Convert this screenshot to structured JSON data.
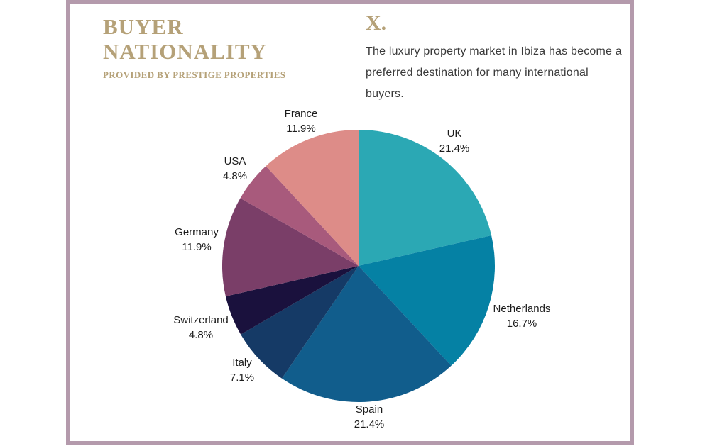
{
  "frame": {
    "border_color": "#B49AAC"
  },
  "header": {
    "title_line1": "BUYER",
    "title_line2": "NATIONALITY",
    "subtitle": "PROVIDED BY PRESTIGE PROPERTIES",
    "accent_color": "#B5A178"
  },
  "intro": {
    "monogram": "X.",
    "description": "The luxury property market in Ibiza has become a preferred destination for many international buyers."
  },
  "chart_data": {
    "type": "pie",
    "title": "Buyer Nationality",
    "start_angle_deg": 0,
    "direction": "clockwise",
    "legend": "none",
    "label_style": "outside",
    "categories": [
      "UK",
      "Netherlands",
      "Spain",
      "Italy",
      "Switzerland",
      "Germany",
      "USA",
      "France"
    ],
    "values": [
      21.4,
      16.7,
      21.4,
      7.1,
      4.8,
      11.9,
      4.8,
      11.9
    ],
    "value_labels": [
      "21.4%",
      "16.7%",
      "21.4%",
      "7.1%",
      "4.8%",
      "11.9%",
      "4.8%",
      "11.9%"
    ],
    "colors": [
      "#2BA8B4",
      "#0581A4",
      "#115D8C",
      "#153A66",
      "#1A113D",
      "#7A3E68",
      "#A85A7C",
      "#DD8C88"
    ]
  }
}
